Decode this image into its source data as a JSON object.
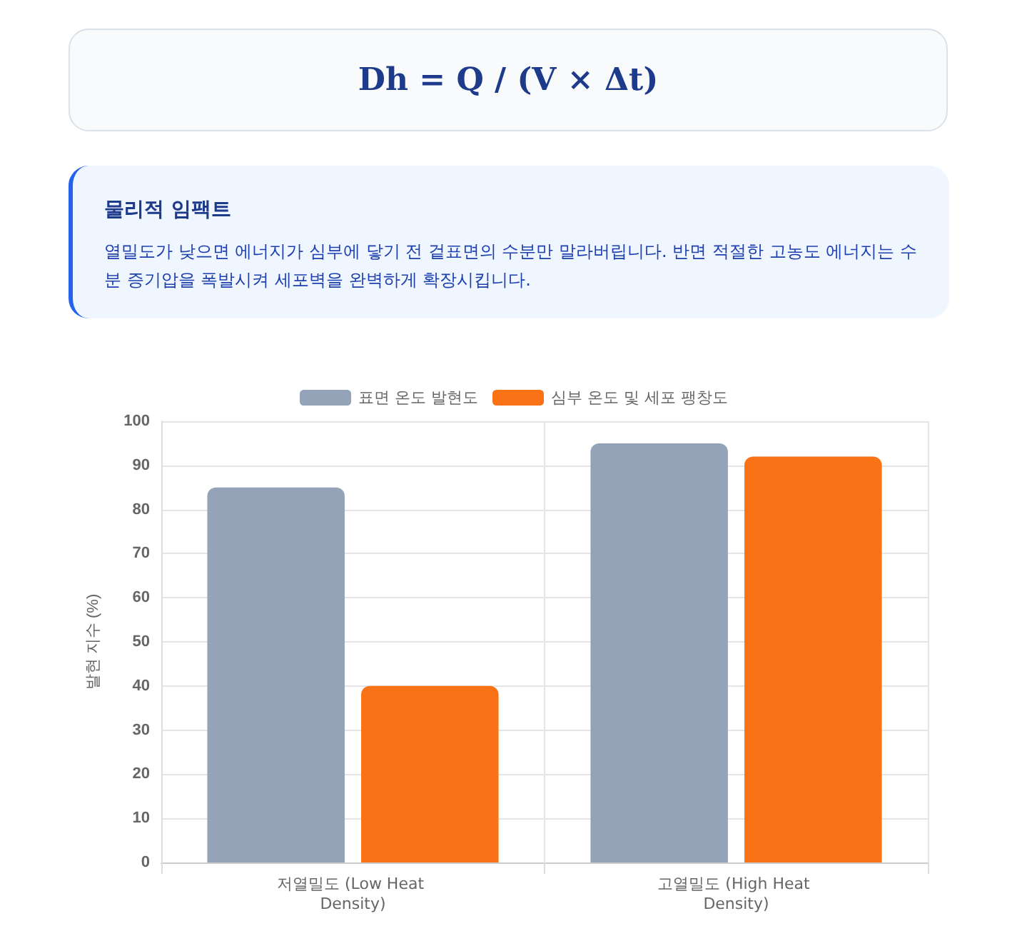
{
  "chart_data": {
    "type": "bar",
    "title": "Dh = Q / (V × Δt)",
    "subtitle": "물리적 임팩트",
    "annotations": [
      "열밀도가 낮으면 에너지가 심부에 닿기 전 겉표면의 수분만 말라버립니다. 반면 적절한 고농도 에너지는 수분 증기압을 폭발시켜 세포벽을 완벽하게 확장시킵니다."
    ],
    "ylabel": "발현 지수 (%)",
    "categories": [
      "저열밀도 (Low Heat Density)",
      "고열밀도 (High Heat Density)"
    ],
    "series": [
      {
        "name": "표면 온도 발현도",
        "color": "#94a3b8",
        "values": [
          85,
          95
        ]
      },
      {
        "name": "심부 온도 및 세포 팽창도",
        "color": "#f97316",
        "values": [
          40,
          92
        ]
      }
    ],
    "ylim": [
      0,
      100
    ],
    "yticks": [
      0,
      10,
      20,
      30,
      40,
      50,
      60,
      70,
      80,
      90,
      100
    ],
    "grid": true,
    "legend": "top"
  }
}
